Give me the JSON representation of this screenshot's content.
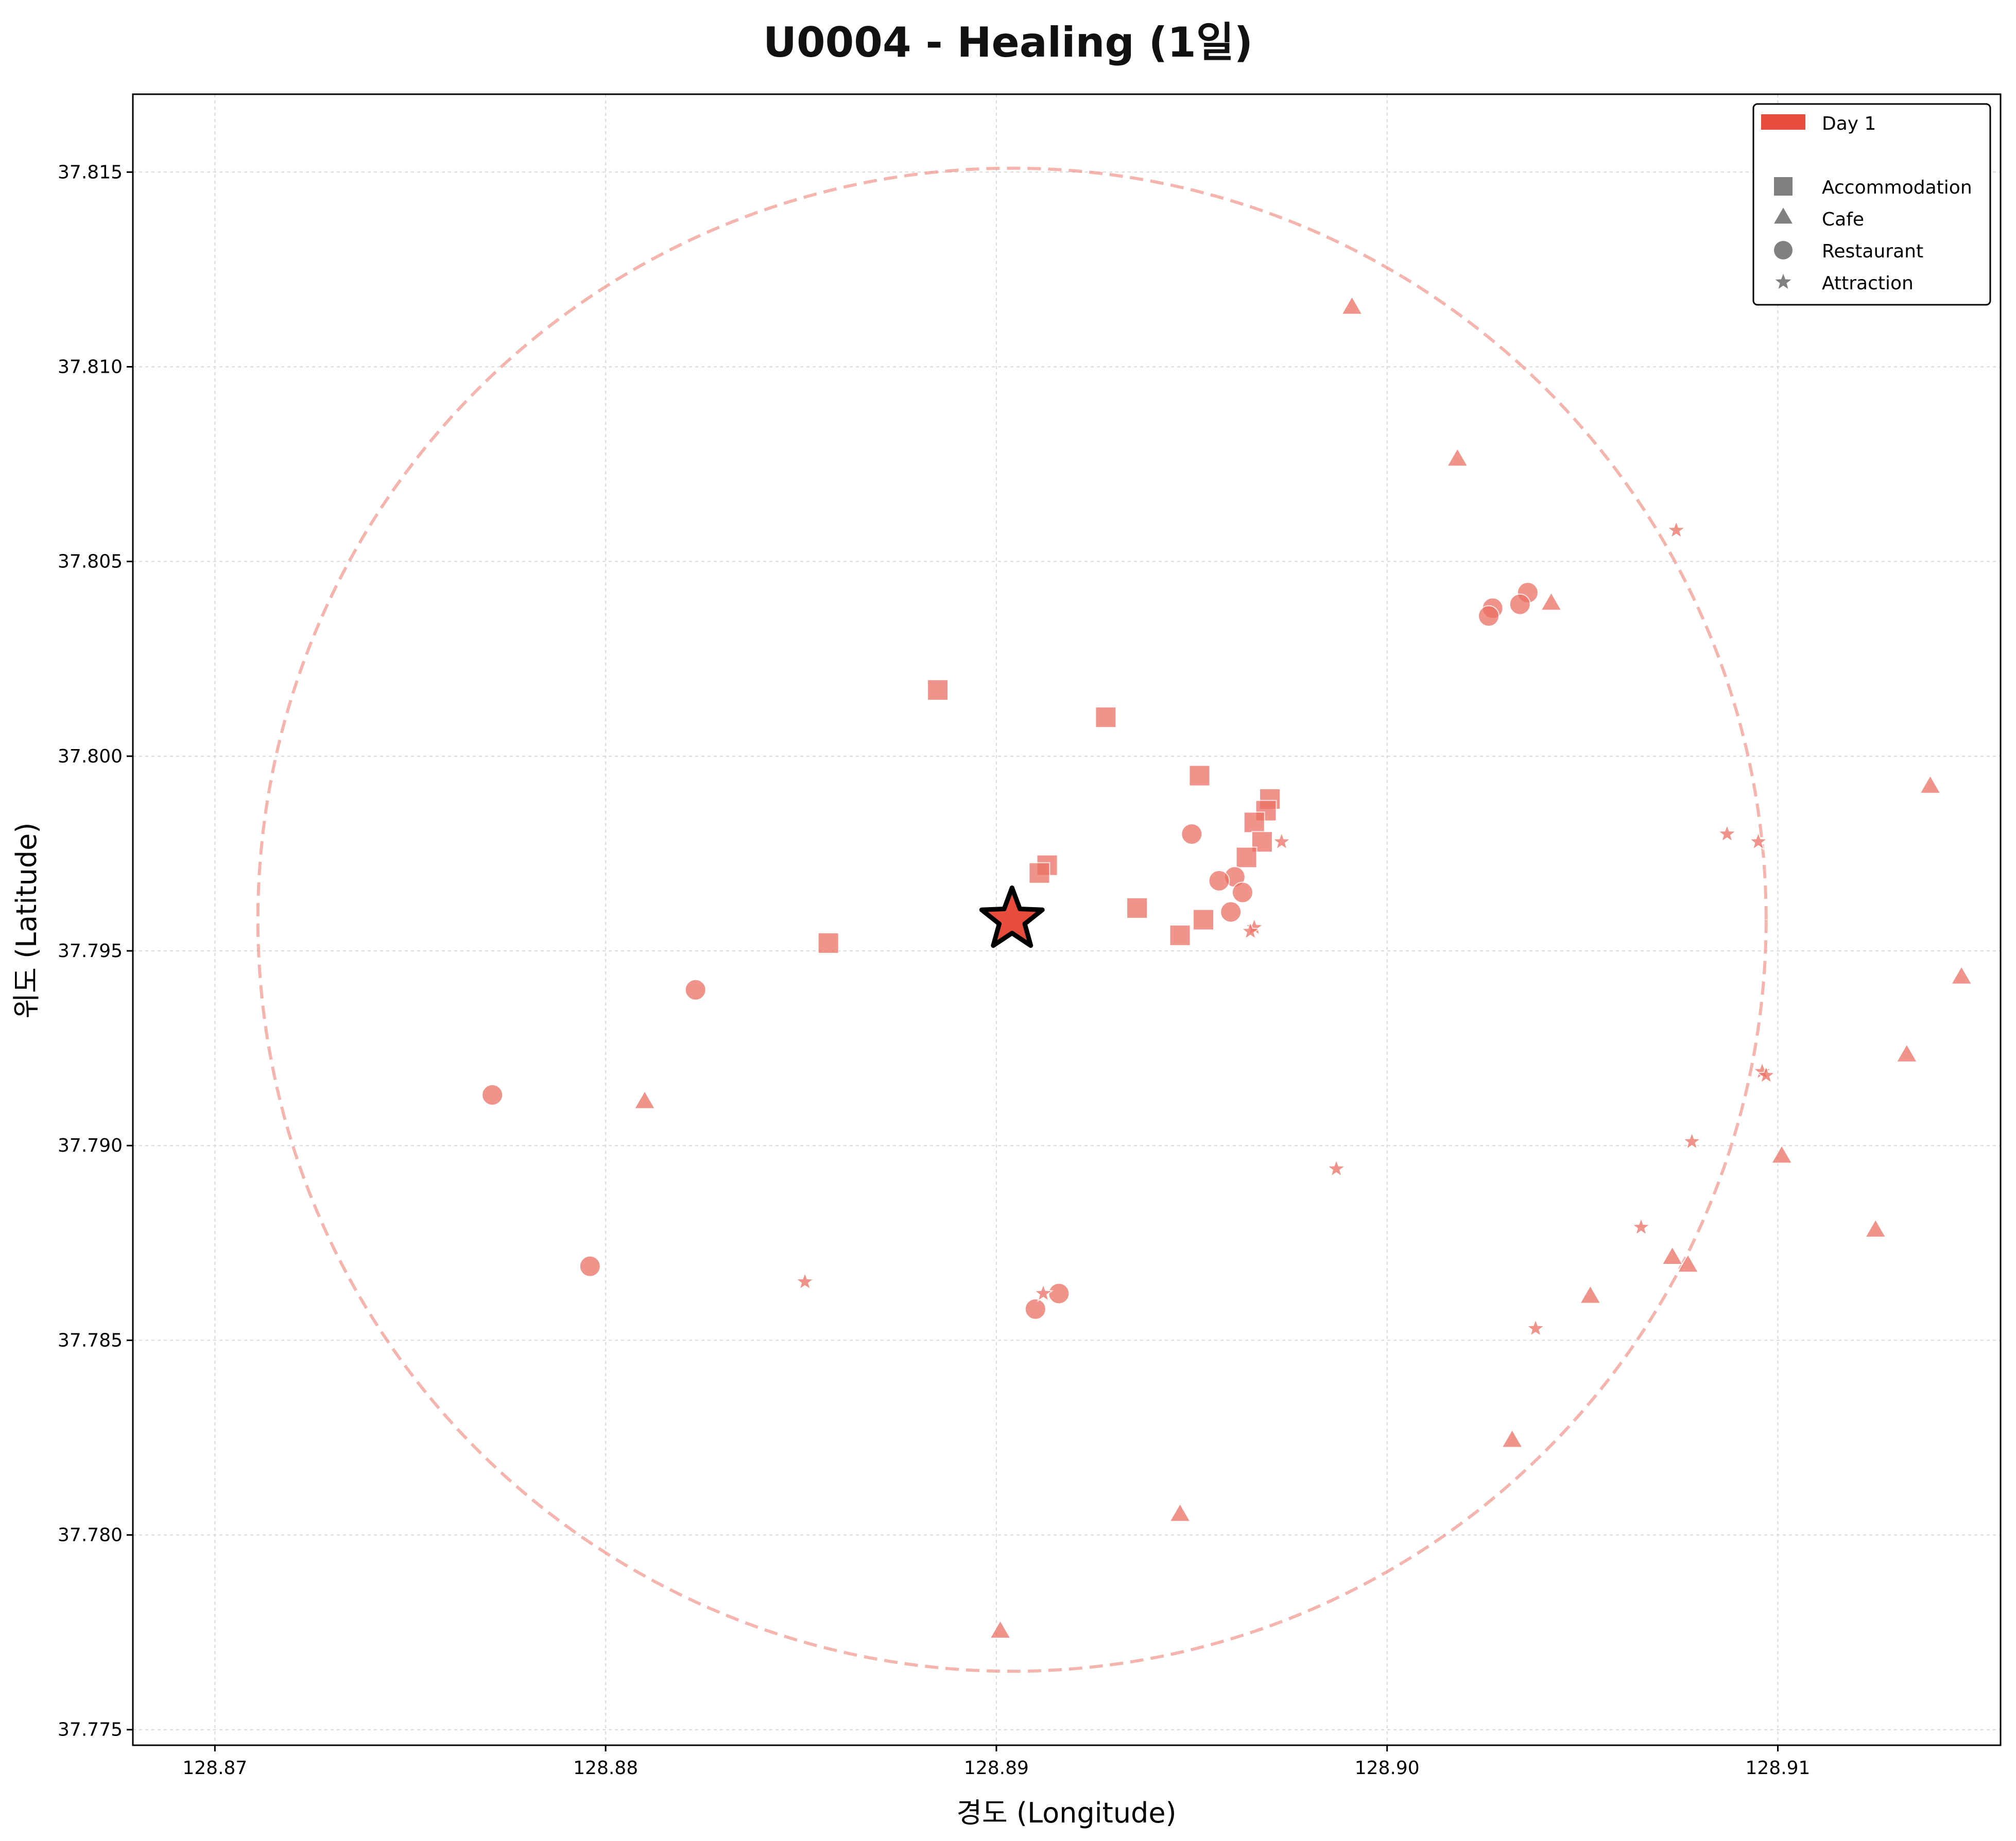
{
  "chart_data": {
    "type": "scatter",
    "title": "U0004 - Healing (1일)",
    "xlabel": "경도 (Longitude)",
    "ylabel": "위도 (Latitude)",
    "xlim": [
      128.8679,
      128.9157
    ],
    "ylim": [
      37.7746,
      37.817
    ],
    "x_ticks": [
      128.87,
      128.88,
      128.89,
      128.9,
      128.91
    ],
    "x_tick_labels": [
      "128.87",
      "128.88",
      "128.89",
      "128.90",
      "128.91"
    ],
    "y_ticks": [
      37.775,
      37.78,
      37.785,
      37.79,
      37.795,
      37.8,
      37.805,
      37.81,
      37.815
    ],
    "y_tick_labels": [
      "37.775",
      "37.780",
      "37.785",
      "37.790",
      "37.795",
      "37.800",
      "37.805",
      "37.810",
      "37.815"
    ],
    "grid": true,
    "legend_position": "top-right",
    "legend": {
      "day_label": "Day 1",
      "items": [
        {
          "label": "Accommodation",
          "marker": "square"
        },
        {
          "label": "Cafe",
          "marker": "triangle"
        },
        {
          "label": "Restaurant",
          "marker": "circle"
        },
        {
          "label": "Attraction",
          "marker": "star"
        }
      ]
    },
    "colors": {
      "day1": "#e74c3c",
      "point_fill": "#ec7063",
      "radius_circle": "#f1948a",
      "legend_marker": "#808080",
      "center_star_fill": "#e74c3c",
      "center_star_stroke": "#000000"
    },
    "center": {
      "x": 128.8904,
      "y": 37.7958,
      "label": "start"
    },
    "radius_circle": {
      "center_x": 128.8904,
      "center_y": 37.7958,
      "x_radius": 0.0193,
      "y_radius": 0.0193
    },
    "series": [
      {
        "name": "Accommodation",
        "marker": "square",
        "points": [
          {
            "x": 128.8885,
            "y": 37.8017
          },
          {
            "x": 128.8928,
            "y": 37.801
          },
          {
            "x": 128.8952,
            "y": 37.7995
          },
          {
            "x": 128.897,
            "y": 37.7989
          },
          {
            "x": 128.8969,
            "y": 37.7986
          },
          {
            "x": 128.8966,
            "y": 37.7983
          },
          {
            "x": 128.8968,
            "y": 37.7978
          },
          {
            "x": 128.8964,
            "y": 37.7974
          },
          {
            "x": 128.8913,
            "y": 37.7972
          },
          {
            "x": 128.8911,
            "y": 37.797
          },
          {
            "x": 128.8936,
            "y": 37.7961
          },
          {
            "x": 128.8953,
            "y": 37.7958
          },
          {
            "x": 128.8947,
            "y": 37.7954
          },
          {
            "x": 128.8857,
            "y": 37.7952
          }
        ]
      },
      {
        "name": "Cafe",
        "marker": "triangle",
        "points": [
          {
            "x": 128.8991,
            "y": 37.8115
          },
          {
            "x": 128.9018,
            "y": 37.8076
          },
          {
            "x": 128.9042,
            "y": 37.8039
          },
          {
            "x": 128.9139,
            "y": 37.7992
          },
          {
            "x": 128.9147,
            "y": 37.7943
          },
          {
            "x": 128.9133,
            "y": 37.7923
          },
          {
            "x": 128.881,
            "y": 37.7911
          },
          {
            "x": 128.9101,
            "y": 37.7897
          },
          {
            "x": 128.9125,
            "y": 37.7878
          },
          {
            "x": 128.9073,
            "y": 37.7871
          },
          {
            "x": 128.9077,
            "y": 37.7869
          },
          {
            "x": 128.9052,
            "y": 37.7861
          },
          {
            "x": 128.9032,
            "y": 37.7824
          },
          {
            "x": 128.8947,
            "y": 37.7805
          },
          {
            "x": 128.8901,
            "y": 37.7775
          }
        ]
      },
      {
        "name": "Restaurant",
        "marker": "circle",
        "points": [
          {
            "x": 128.9036,
            "y": 37.8042
          },
          {
            "x": 128.9034,
            "y": 37.8039
          },
          {
            "x": 128.9027,
            "y": 37.8038
          },
          {
            "x": 128.9026,
            "y": 37.8036
          },
          {
            "x": 128.895,
            "y": 37.798
          },
          {
            "x": 128.8961,
            "y": 37.7969
          },
          {
            "x": 128.8957,
            "y": 37.7968
          },
          {
            "x": 128.8963,
            "y": 37.7965
          },
          {
            "x": 128.896,
            "y": 37.796
          },
          {
            "x": 128.8823,
            "y": 37.794
          },
          {
            "x": 128.8771,
            "y": 37.7913
          },
          {
            "x": 128.8796,
            "y": 37.7869
          },
          {
            "x": 128.8916,
            "y": 37.7862
          },
          {
            "x": 128.891,
            "y": 37.7858
          }
        ]
      },
      {
        "name": "Attraction",
        "marker": "star",
        "points": [
          {
            "x": 128.9074,
            "y": 37.8058
          },
          {
            "x": 128.9087,
            "y": 37.798
          },
          {
            "x": 128.9095,
            "y": 37.7978
          },
          {
            "x": 128.8973,
            "y": 37.7978
          },
          {
            "x": 128.8966,
            "y": 37.7956
          },
          {
            "x": 128.8965,
            "y": 37.7955
          },
          {
            "x": 128.9096,
            "y": 37.7919
          },
          {
            "x": 128.9097,
            "y": 37.7918
          },
          {
            "x": 128.9078,
            "y": 37.7901
          },
          {
            "x": 128.8987,
            "y": 37.7894
          },
          {
            "x": 128.9065,
            "y": 37.7879
          },
          {
            "x": 128.8851,
            "y": 37.7865
          },
          {
            "x": 128.8912,
            "y": 37.7862
          },
          {
            "x": 128.9038,
            "y": 37.7853
          }
        ]
      }
    ]
  }
}
